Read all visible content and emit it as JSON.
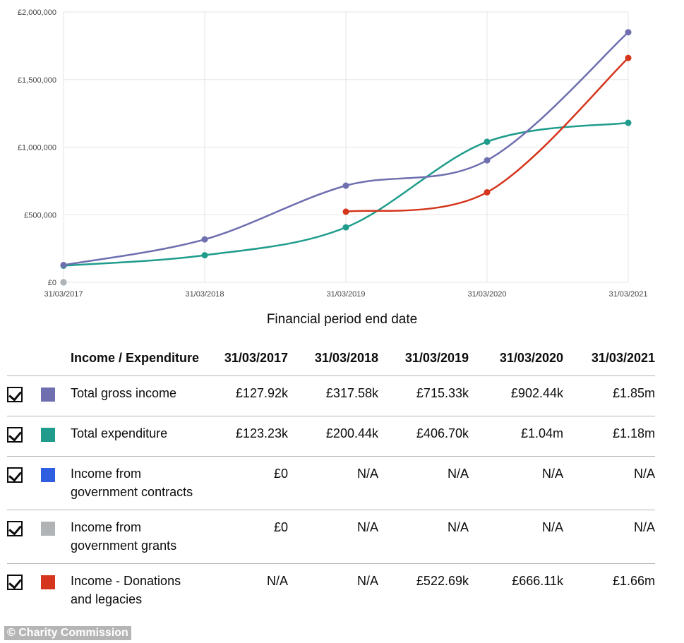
{
  "chart_data": {
    "type": "line",
    "xlabel": "Financial period end date",
    "categories": [
      "31/03/2017",
      "31/03/2018",
      "31/03/2019",
      "31/03/2020",
      "31/03/2021"
    ],
    "y_ticks": [
      "£0",
      "£500,000",
      "£1,000,000",
      "£1,500,000",
      "£2,000,000"
    ],
    "ylim": [
      0,
      2000000
    ],
    "grid": true,
    "series": [
      {
        "name": "Total gross income",
        "color": "#6f6fb0",
        "values": [
          127920,
          317580,
          715330,
          902440,
          1850000
        ]
      },
      {
        "name": "Total expenditure",
        "color": "#1f9c8c",
        "values": [
          123230,
          200440,
          406700,
          1040000,
          1180000
        ]
      },
      {
        "name": "Income from government contracts",
        "color": "#2f5fe0",
        "values": [
          0,
          null,
          null,
          null,
          null
        ]
      },
      {
        "name": "Income from government grants",
        "color": "#b1b4b6",
        "values": [
          0,
          null,
          null,
          null,
          null
        ]
      },
      {
        "name": "Income - Donations and legacies",
        "color": "#d4351c",
        "values": [
          null,
          null,
          522690,
          666110,
          1660000
        ]
      }
    ]
  },
  "table": {
    "header_label": "Income / Expenditure",
    "columns": [
      "31/03/2017",
      "31/03/2018",
      "31/03/2019",
      "31/03/2020",
      "31/03/2021"
    ],
    "rows": [
      {
        "label": "Total gross income",
        "color": "#6f6fb0",
        "cells": [
          "£127.92k",
          "£317.58k",
          "£715.33k",
          "£902.44k",
          "£1.85m"
        ]
      },
      {
        "label": "Total expenditure",
        "color": "#1f9c8c",
        "cells": [
          "£123.23k",
          "£200.44k",
          "£406.70k",
          "£1.04m",
          "£1.18m"
        ]
      },
      {
        "label": "Income from government contracts",
        "color": "#2f5fe0",
        "cells": [
          "£0",
          "N/A",
          "N/A",
          "N/A",
          "N/A"
        ]
      },
      {
        "label": "Income from government grants",
        "color": "#b1b4b6",
        "cells": [
          "£0",
          "N/A",
          "N/A",
          "N/A",
          "N/A"
        ]
      },
      {
        "label": "Income - Donations and legacies",
        "color": "#d4351c",
        "cells": [
          "N/A",
          "N/A",
          "£522.69k",
          "£666.11k",
          "£1.66m"
        ]
      }
    ]
  },
  "credit": "© Charity Commission"
}
